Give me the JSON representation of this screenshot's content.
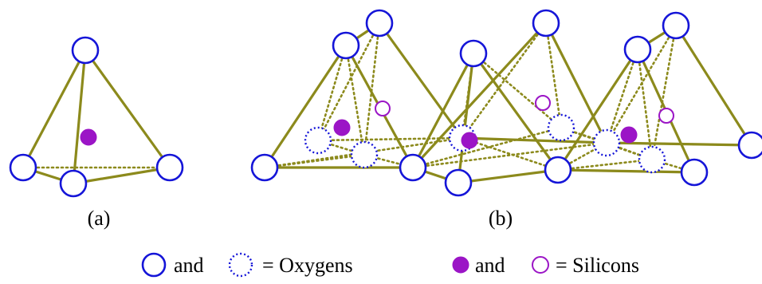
{
  "colors": {
    "bond": "#8c8a1c",
    "oxygen": "#1515d8",
    "silicon": "#9b15c6",
    "text": "#000000",
    "background": "#ffffff"
  },
  "panel_a": {
    "label": "(a)"
  },
  "panel_b": {
    "label": "(b)"
  },
  "legend": {
    "oxygen": {
      "icon_solid": "solid-circle",
      "connector": "and",
      "icon_dotted": "dotted-circle",
      "text": "= Oxygens"
    },
    "silicon": {
      "icon_filled": "filled-dot",
      "connector": "and",
      "icon_hollow": "hollow-ring",
      "text": "= Silicons"
    }
  }
}
